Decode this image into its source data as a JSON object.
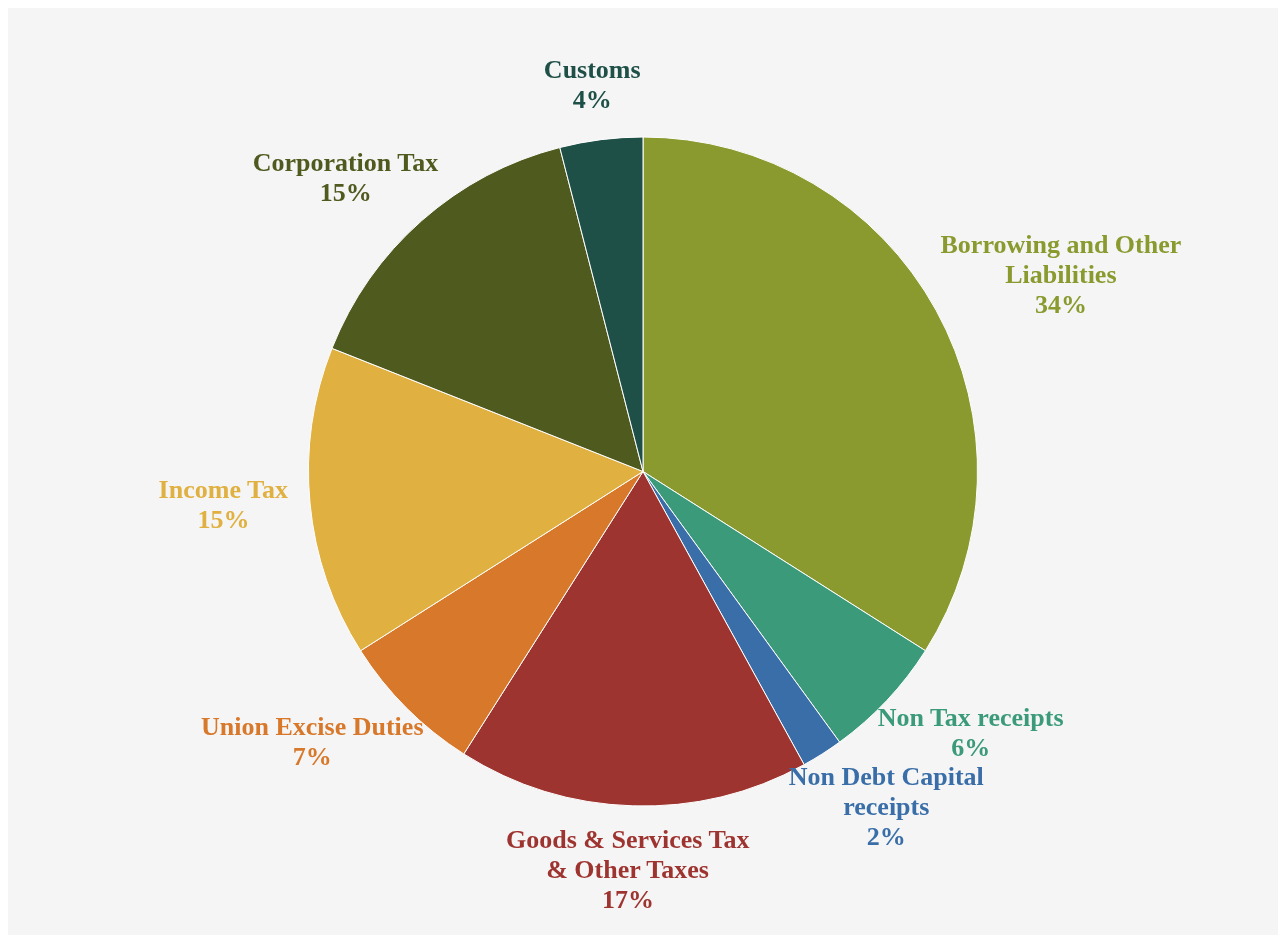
{
  "chart_data": {
    "type": "pie",
    "categories": [
      "Borrowing and Other Liabilities",
      "Non Tax receipts",
      "Non Debt Capital receipts",
      "Goods & Services Tax & Other Taxes",
      "Union Excise Duties",
      "Income Tax",
      "Corporation Tax",
      "Customs"
    ],
    "values": [
      34,
      6,
      2,
      17,
      7,
      15,
      15,
      4
    ],
    "value_labels": [
      "34%",
      "6%",
      "2%",
      "17%",
      "7%",
      "15%",
      "15%",
      "4%"
    ],
    "colors": [
      "#8a9a2e",
      "#3a9a7a",
      "#3a6ea8",
      "#9e3430",
      "#d8782a",
      "#e0b040",
      "#4e5a1e",
      "#1e5048"
    ],
    "legend": false
  }
}
